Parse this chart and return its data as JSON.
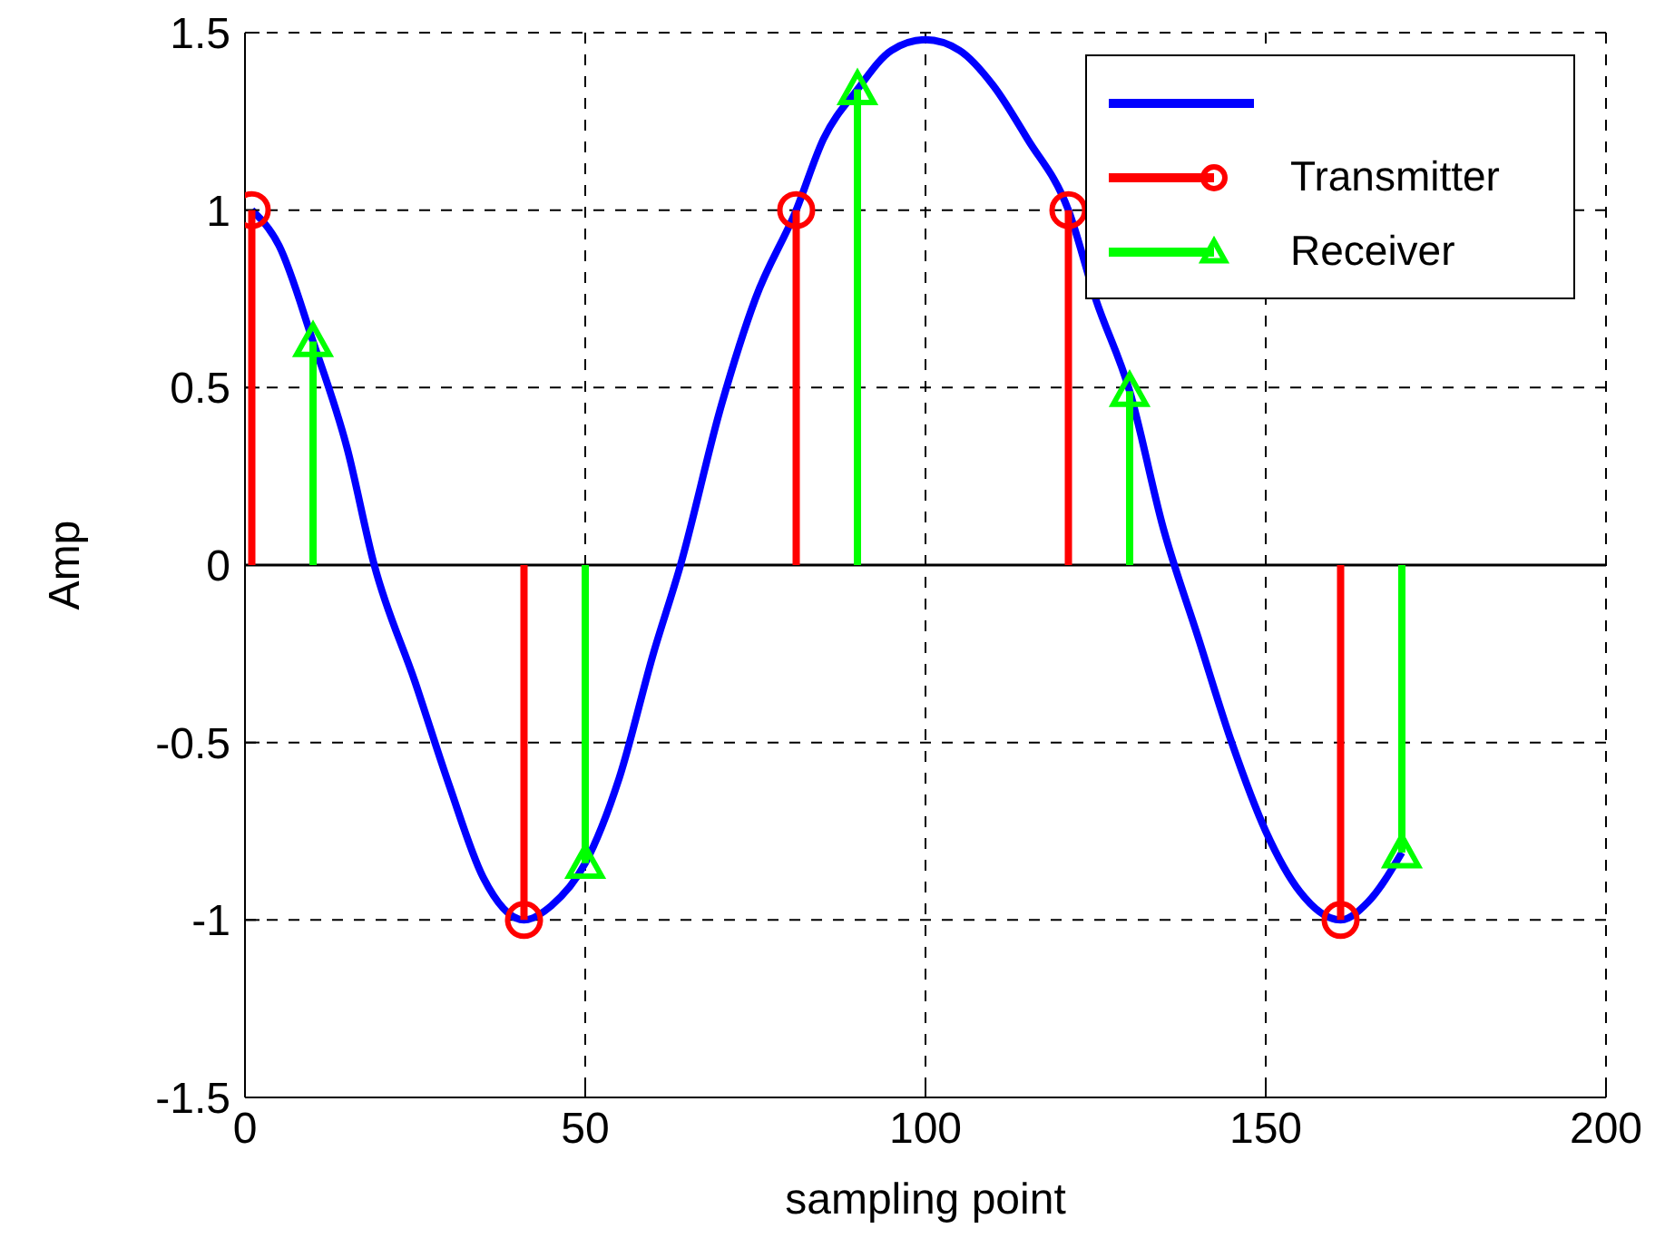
{
  "chart_data": {
    "type": "lollipop",
    "xlabel": "sampling point",
    "ylabel": "Amp",
    "xlim": [
      0,
      200
    ],
    "xticks": [
      0,
      50,
      100,
      150,
      200
    ],
    "ylim": [
      -1.5,
      1.5
    ],
    "yticks": [
      -1.5,
      -1,
      -0.5,
      0,
      0.5,
      1,
      1.5
    ],
    "grid": true,
    "legend": "top right",
    "series": [
      {
        "type": "line",
        "color": "#0000ff",
        "marker": "none",
        "x": [
          1,
          5,
          10,
          15,
          19,
          25,
          30,
          35,
          41,
          45,
          50,
          55,
          60,
          64,
          70,
          75,
          81,
          85,
          90,
          95,
          100,
          105,
          110,
          115,
          121,
          125,
          130,
          135,
          140,
          145,
          150,
          155,
          161,
          165,
          170
        ],
        "values": [
          1,
          0.9,
          0.63,
          0.33,
          0,
          -0.33,
          -0.62,
          -0.88,
          -1,
          -0.96,
          -0.84,
          -0.6,
          -0.25,
          0,
          0.45,
          0.75,
          1,
          1.2,
          1.34,
          1.45,
          1.48,
          1.45,
          1.35,
          1.2,
          1,
          0.75,
          0.49,
          0.1,
          -0.2,
          -0.5,
          -0.75,
          -0.92,
          -1,
          -0.95,
          -0.81
        ]
      },
      {
        "name": "Transmitter",
        "color": "#ff0000",
        "marker": "circle",
        "x": [
          1,
          41,
          81,
          121,
          161
        ],
        "values": [
          1,
          -1,
          1,
          1,
          -1
        ]
      },
      {
        "name": "Receiver",
        "color": "#00ff00",
        "marker": "triangle",
        "x": [
          10,
          50,
          90,
          130,
          170
        ],
        "values": [
          0.63,
          -0.84,
          1.34,
          0.49,
          -0.81
        ]
      }
    ]
  }
}
